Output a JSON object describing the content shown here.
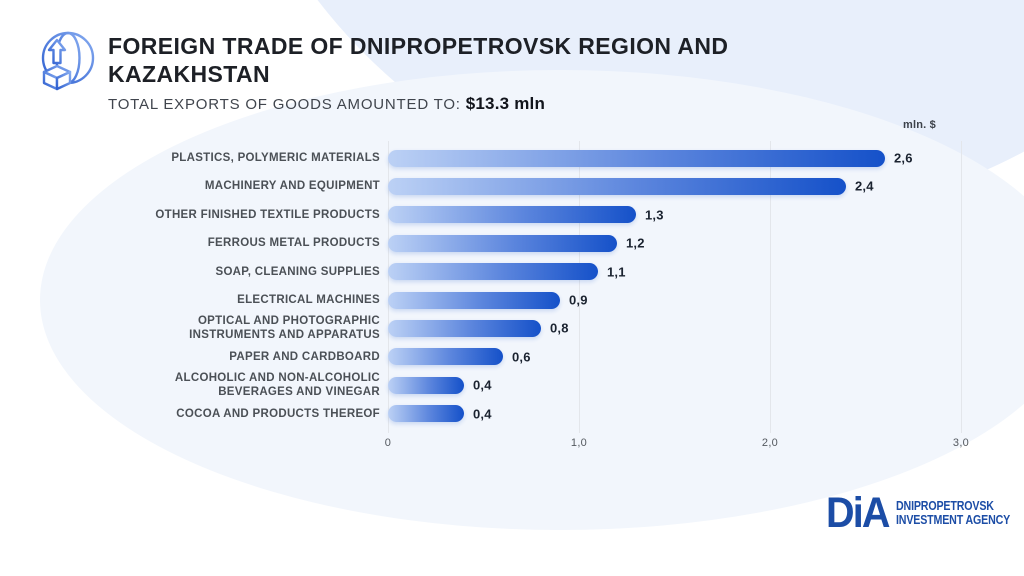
{
  "header": {
    "title_line1": "FOREIGN TRADE OF DNIPROPETROVSK REGION AND",
    "title_line2": "KAZAKHSTAN",
    "subtitle_label": "TOTAL EXPORTS OF GOODS AMOUNTED TO: ",
    "subtitle_value": "$13.3 mln"
  },
  "chart_data": {
    "type": "bar",
    "orientation": "horizontal",
    "title": "Foreign trade of Dnipropetrovsk region and Kazakhstan — exports by goods",
    "unit_label": "mln. $",
    "categories": [
      "PLASTICS, POLYMERIC MATERIALS",
      "MACHINERY AND EQUIPMENT",
      "OTHER FINISHED TEXTILE PRODUCTS",
      "FERROUS METAL PRODUCTS",
      "SOAP, CLEANING SUPPLIES",
      "ELECTRICAL MACHINES",
      "OPTICAL AND PHOTOGRAPHIC INSTRUMENTS AND APPARATUS",
      "PAPER AND CARDBOARD",
      "ALCOHOLIC AND NON-ALCOHOLIC BEVERAGES AND VINEGAR",
      "COCOA AND PRODUCTS THEREOF"
    ],
    "values": [
      2.6,
      2.4,
      1.3,
      1.2,
      1.1,
      0.9,
      0.8,
      0.6,
      0.4,
      0.4
    ],
    "value_labels": [
      "2,6",
      "2,4",
      "1,3",
      "1,2",
      "1,1",
      "0,9",
      "0,8",
      "0,6",
      "0,4",
      "0,4"
    ],
    "x_ticks": [
      "0",
      "1,0",
      "2,0",
      "3,0"
    ],
    "x_tick_values": [
      0,
      1,
      2,
      3
    ],
    "xlim": [
      0,
      3
    ],
    "grid": true,
    "bar_gradient": [
      "#bcd1f5",
      "#1551c9"
    ]
  },
  "footer_logo": {
    "wordmark": "DiA",
    "line1": "DNIPROPETROVSK",
    "line2": "INVESTMENT AGENCY"
  },
  "colors": {
    "accent_blue": "#1551c9",
    "logo_blue": "#1c4da6",
    "blob_blue": "#e8effb",
    "title_dark": "#1d2026"
  }
}
